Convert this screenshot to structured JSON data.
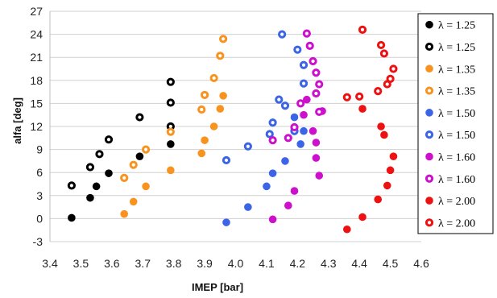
{
  "chart_data": {
    "type": "scatter",
    "title": "",
    "xlabel": "IMEP [bar]",
    "ylabel": "alfa [deg]",
    "xlim": [
      3.4,
      4.6
    ],
    "ylim": [
      -3,
      27
    ],
    "x_ticks": [
      "3.4",
      "3.5",
      "3.6",
      "3.7",
      "3.8",
      "3.9",
      "4.0",
      "4.1",
      "4.2",
      "4.3",
      "4.4",
      "4.5",
      "4.6"
    ],
    "y_ticks": [
      "-3",
      "0",
      "3",
      "6",
      "9",
      "12",
      "15",
      "18",
      "21",
      "24",
      "27"
    ],
    "grid": true,
    "legend_position": "right",
    "series": [
      {
        "name": "λ = 1.25",
        "color": "#000000",
        "marker": "filled",
        "x": [
          3.47,
          3.53,
          3.55,
          3.59,
          3.69,
          3.79
        ],
        "y": [
          0.1,
          2.7,
          4.2,
          5.9,
          8.1,
          9.7
        ]
      },
      {
        "name": "λ = 1.25",
        "color": "#000000",
        "marker": "ring",
        "x": [
          3.47,
          3.53,
          3.56,
          3.59,
          3.69,
          3.79,
          3.79,
          3.79
        ],
        "y": [
          4.3,
          6.7,
          8.4,
          10.3,
          13.2,
          12.0,
          15.1,
          17.8
        ]
      },
      {
        "name": "λ = 1.35",
        "color": "#F7931E",
        "marker": "filled",
        "x": [
          3.64,
          3.67,
          3.71,
          3.79,
          3.89,
          3.9,
          3.93,
          3.95,
          3.96
        ],
        "y": [
          0.6,
          2.2,
          4.2,
          6.3,
          8.5,
          10.2,
          12.0,
          14.3,
          16.0
        ]
      },
      {
        "name": "λ = 1.35",
        "color": "#F7931E",
        "marker": "ring",
        "x": [
          3.64,
          3.67,
          3.71,
          3.79,
          3.89,
          3.9,
          3.93,
          3.95,
          3.96
        ],
        "y": [
          5.3,
          7.0,
          9.0,
          11.3,
          14.2,
          16.1,
          18.3,
          21.2,
          23.4
        ]
      },
      {
        "name": "λ = 1.50",
        "color": "#3B64E6",
        "marker": "filled",
        "x": [
          3.97,
          4.04,
          4.1,
          4.12,
          4.16,
          4.19,
          4.21,
          4.22
        ],
        "y": [
          -0.5,
          1.5,
          4.2,
          5.9,
          7.5,
          13.2,
          9.7,
          11.4
        ]
      },
      {
        "name": "λ = 1.50",
        "color": "#3B64E6",
        "marker": "ring",
        "x": [
          3.97,
          4.04,
          4.11,
          4.12,
          4.14,
          4.16,
          4.15,
          4.2,
          4.22,
          4.22,
          4.19
        ],
        "y": [
          7.6,
          9.4,
          11.0,
          12.5,
          15.5,
          14.7,
          24.0,
          22.0,
          20.0,
          17.6,
          11.4
        ]
      },
      {
        "name": "λ = 1.60",
        "color": "#CC10CC",
        "marker": "filled",
        "x": [
          4.12,
          4.17,
          4.19,
          4.22,
          4.23,
          4.25,
          4.26,
          4.26,
          4.27,
          4.28
        ],
        "y": [
          -0.1,
          1.7,
          3.6,
          13.5,
          15.5,
          11.4,
          7.9,
          9.9,
          5.6,
          14.0
        ]
      },
      {
        "name": "λ = 1.60",
        "color": "#CC10CC",
        "marker": "ring",
        "x": [
          4.12,
          4.17,
          4.19,
          4.21,
          4.23,
          4.24,
          4.25,
          4.26,
          4.26,
          4.27,
          4.27
        ],
        "y": [
          10.2,
          10.5,
          11.9,
          15.0,
          24.1,
          22.5,
          20.5,
          19.0,
          16.3,
          13.9,
          17.5
        ]
      },
      {
        "name": "λ = 2.00",
        "color": "#EE1111",
        "marker": "filled",
        "x": [
          4.36,
          4.41,
          4.41,
          4.46,
          4.47,
          4.48,
          4.49,
          4.5,
          4.51
        ],
        "y": [
          -1.4,
          0.2,
          14.3,
          2.5,
          12.0,
          10.9,
          4.3,
          6.3,
          8.1
        ]
      },
      {
        "name": "λ = 2.00",
        "color": "#EE1111",
        "marker": "ring",
        "x": [
          4.36,
          4.4,
          4.41,
          4.46,
          4.47,
          4.48,
          4.49,
          4.5,
          4.51
        ],
        "y": [
          15.8,
          15.9,
          24.6,
          16.6,
          22.6,
          21.5,
          17.5,
          18.2,
          19.5
        ]
      }
    ]
  }
}
